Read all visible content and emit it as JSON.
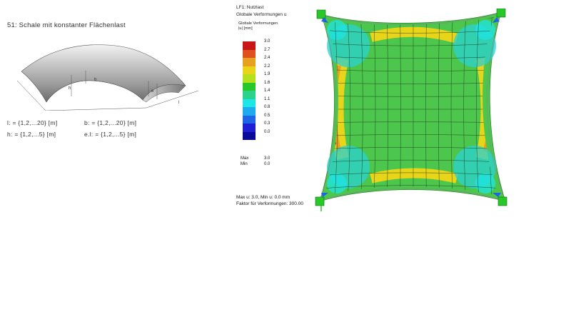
{
  "model": {
    "title": "51: Schale mit konstanter Flächenlast",
    "dim_labels": [
      "b",
      "h",
      "e",
      "l"
    ],
    "params": [
      {
        "text": "l: = {1,2,...20} [m]"
      },
      {
        "text": "b: = {1,2,...20} [m]"
      },
      {
        "text": "h: = {1,2,...5} [m]"
      },
      {
        "text": "e.l: = {1,2,...5} [m]"
      }
    ]
  },
  "results_panel": {
    "load_case": "LF1: Nutzlast",
    "view_title": "Globale Verformungen u",
    "legend": {
      "title": "Globale Verformungen",
      "unit": "|u| [mm]",
      "ticks": [
        "3.0",
        "2.7",
        "2.4",
        "2.2",
        "1.9",
        "1.6",
        "1.4",
        "1.1",
        "0.8",
        "0.5",
        "0.3",
        "0.0"
      ],
      "colors": [
        "#c81616",
        "#e0501e",
        "#e8a020",
        "#e8d418",
        "#b4e01e",
        "#28c828",
        "#2ad28c",
        "#1ee6e6",
        "#1eaaee",
        "#1e64e6",
        "#1e1ed2",
        "#0a0a96"
      ],
      "max_label": "Max",
      "max_value": "3.0",
      "min_label": "Min",
      "min_value": "0.0"
    },
    "footer": {
      "line1": "Max u: 3.0, Min u: 0.0 mm",
      "line2": "Faktor für Verformungen: 300.00"
    }
  }
}
